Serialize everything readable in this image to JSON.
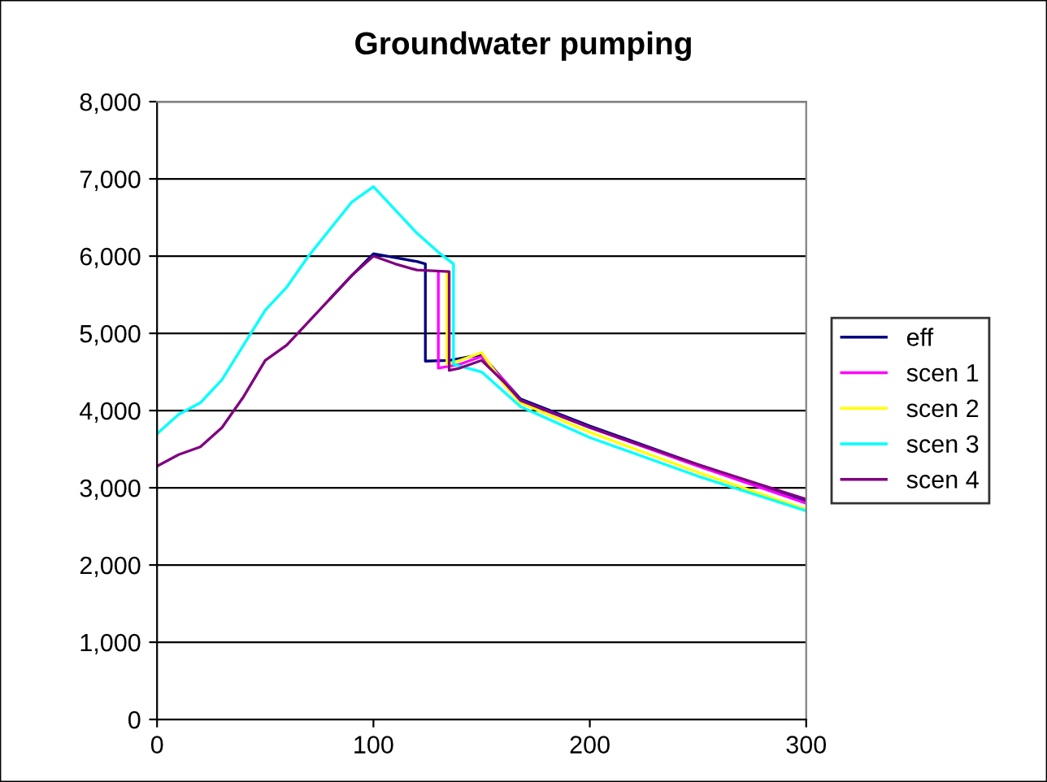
{
  "chart_data": {
    "type": "line",
    "title": "Groundwater pumping",
    "legend": "right",
    "grid": "y",
    "marker": "none",
    "line_style": "solid",
    "xlim": [
      0,
      300
    ],
    "xticks": [
      0,
      100,
      200,
      300
    ],
    "ylim": [
      0,
      8000
    ],
    "yticks": [
      {
        "value": 0,
        "label": "0"
      },
      {
        "value": 1000,
        "label": "1,000"
      },
      {
        "value": 2000,
        "label": "2,000"
      },
      {
        "value": 3000,
        "label": "3,000"
      },
      {
        "value": 4000,
        "label": "4,000"
      },
      {
        "value": 5000,
        "label": "5,000"
      },
      {
        "value": 6000,
        "label": "6,000"
      },
      {
        "value": 7000,
        "label": "7,000"
      },
      {
        "value": 8000,
        "label": "8,000"
      }
    ],
    "series": [
      {
        "name": "eff",
        "color": "#000080",
        "x": [
          80,
          90,
          100,
          110,
          120,
          124,
          124,
          135,
          145,
          150,
          160,
          168,
          200,
          250,
          300
        ],
        "values": [
          5450,
          5750,
          6030,
          5980,
          5930,
          5900,
          4640,
          4650,
          4700,
          4720,
          4400,
          4150,
          3800,
          3300,
          2830
        ]
      },
      {
        "name": "scen 1",
        "color": "#ff00ff",
        "x": [
          130,
          130,
          140,
          150,
          160,
          168,
          200,
          250,
          300
        ],
        "values": [
          5800,
          4550,
          4600,
          4700,
          4400,
          4130,
          3780,
          3280,
          2800
        ]
      },
      {
        "name": "scen 2",
        "color": "#ffff00",
        "x": [
          134,
          134,
          140,
          150,
          160,
          168,
          200,
          250,
          300
        ],
        "values": [
          5800,
          4600,
          4650,
          4750,
          4350,
          4100,
          3720,
          3200,
          2720
        ]
      },
      {
        "name": "scen 3",
        "color": "#00ffff",
        "x": [
          0,
          10,
          20,
          30,
          40,
          50,
          60,
          70,
          80,
          90,
          100,
          110,
          120,
          130,
          137,
          137,
          150,
          160,
          168,
          200,
          250,
          300
        ],
        "values": [
          3700,
          3950,
          4100,
          4400,
          4850,
          5300,
          5600,
          6000,
          6350,
          6700,
          6900,
          6600,
          6300,
          6050,
          5900,
          4600,
          4500,
          4250,
          4050,
          3650,
          3150,
          2700
        ]
      },
      {
        "name": "scen 4",
        "color": "#800080",
        "x": [
          0,
          10,
          20,
          30,
          40,
          50,
          60,
          70,
          80,
          90,
          100,
          110,
          120,
          135,
          135,
          140,
          150,
          160,
          168,
          200,
          250,
          300
        ],
        "values": [
          3280,
          3430,
          3530,
          3780,
          4180,
          4650,
          4850,
          5150,
          5450,
          5750,
          6000,
          5900,
          5820,
          5800,
          4520,
          4550,
          4650,
          4380,
          4130,
          3780,
          3300,
          2850
        ]
      }
    ]
  }
}
